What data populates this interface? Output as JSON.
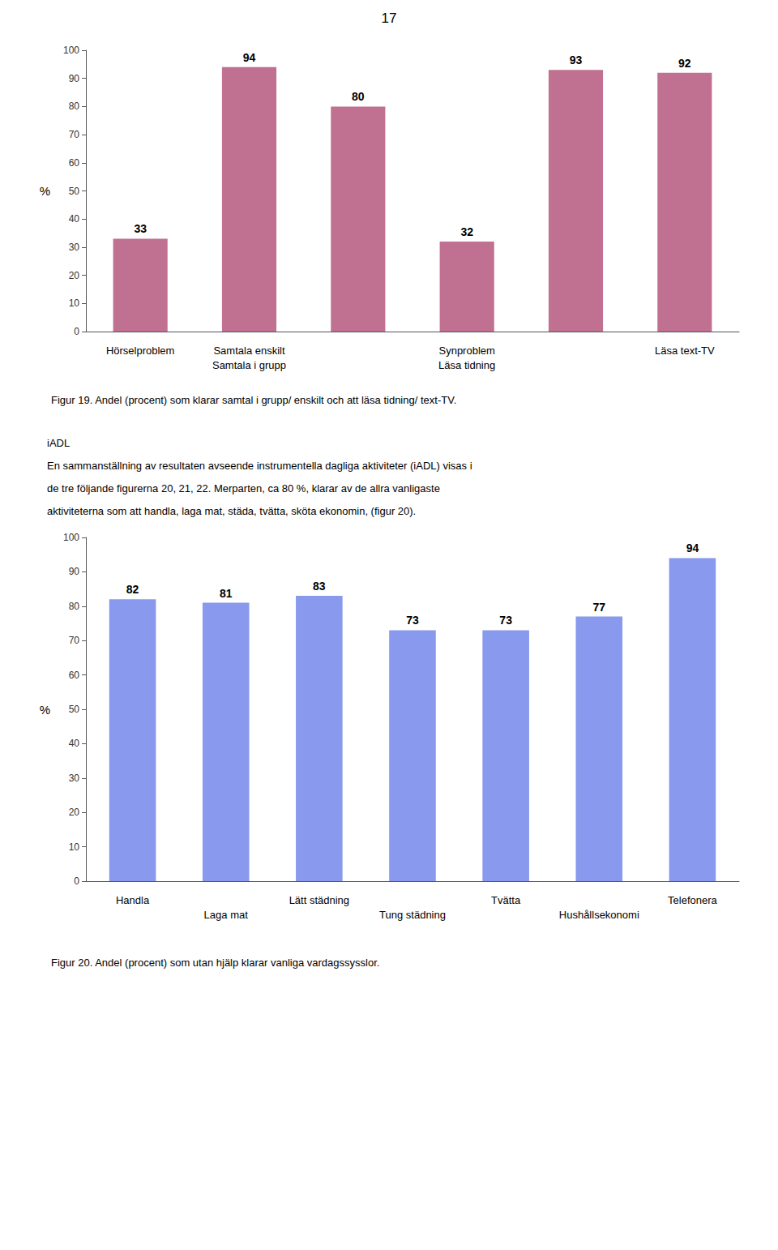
{
  "chart_data": [
    {
      "type": "bar",
      "title": "Figur 19. Andel (procent) som klarar samtal i grupp/ enskilt och att läsa tidning/ text-TV.",
      "annotations": [
        "17"
      ],
      "categories": [
        "Hörselproblem",
        "Samtala enskilt\nSamtala i grupp",
        null,
        "Synproblem\nLäsa tidning",
        null,
        "Läsa text-TV"
      ],
      "values": [
        33,
        94,
        80,
        32,
        93,
        92
      ],
      "color": "#c07090",
      "y_label": "%",
      "ylim": [
        0,
        100
      ],
      "yticks": [
        0,
        10,
        20,
        30,
        40,
        50,
        60,
        70,
        80,
        90,
        100
      ],
      "grid": false,
      "data_labels": true
    },
    {
      "type": "bar",
      "title": "Figur 20. Andel (procent) som utan hjälp klarar vanliga vardagssysslor.",
      "annotations": [
        "iADL",
        "En sammanställning av resultaten avseende instrumentella dagliga aktiviteter (iADL) visas i",
        "de tre följande figurerna 20, 21, 22. Merparten, ca 80 %, klarar av de allra vanligaste",
        "aktiviteterna som att handla, laga mat, städa, tvätta, sköta ekonomin, (figur 20)."
      ],
      "categories": [
        "Handla",
        "Laga mat",
        "Lätt städning",
        "Tung städning",
        "Tvätta",
        "Hushållsekonomi",
        "Telefonera"
      ],
      "values": [
        82,
        81,
        83,
        73,
        73,
        77,
        94
      ],
      "color": "#8899ee",
      "y_label": "%",
      "ylim": [
        0,
        100
      ],
      "yticks": [
        0,
        10,
        20,
        30,
        40,
        50,
        60,
        70,
        80,
        90,
        100
      ],
      "grid": false,
      "data_labels": true
    }
  ]
}
